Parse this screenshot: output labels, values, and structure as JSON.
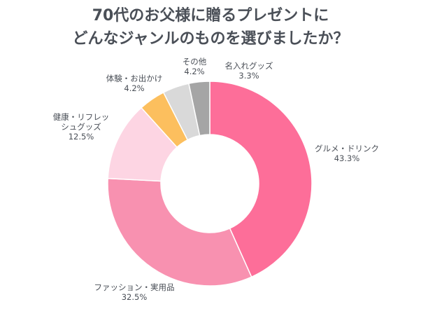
{
  "title_lines": [
    "70代のお父様に贈るプレゼントに",
    "どんなジャンルのものを選びましたか？"
  ],
  "chart_data": {
    "type": "pie",
    "variant": "donut",
    "start": "12-o'clock",
    "direction": "clockwise",
    "categories": [
      "グルメ・ドリンク",
      "ファッション・実用品",
      "健康・リフレッシュグッズ",
      "体験・お出かけ",
      "その他",
      "名入れグッズ"
    ],
    "label_lines": [
      [
        "グルメ・ドリンク"
      ],
      [
        "ファッション・実用品"
      ],
      [
        "健康・リフレッ",
        "シュグッズ"
      ],
      [
        "体験・お出かけ"
      ],
      [
        "その他"
      ],
      [
        "名入れグッズ"
      ]
    ],
    "values": [
      43.3,
      32.5,
      12.5,
      4.2,
      4.2,
      3.3
    ],
    "value_labels": [
      "43.3%",
      "32.5%",
      "12.5%",
      "4.2%",
      "4.2%",
      "3.3%"
    ],
    "colors": [
      "#fd6e99",
      "#f891b0",
      "#fdd5e3",
      "#fcbf5e",
      "#d9d9d9",
      "#a5a5a5"
    ],
    "legend": "none"
  }
}
